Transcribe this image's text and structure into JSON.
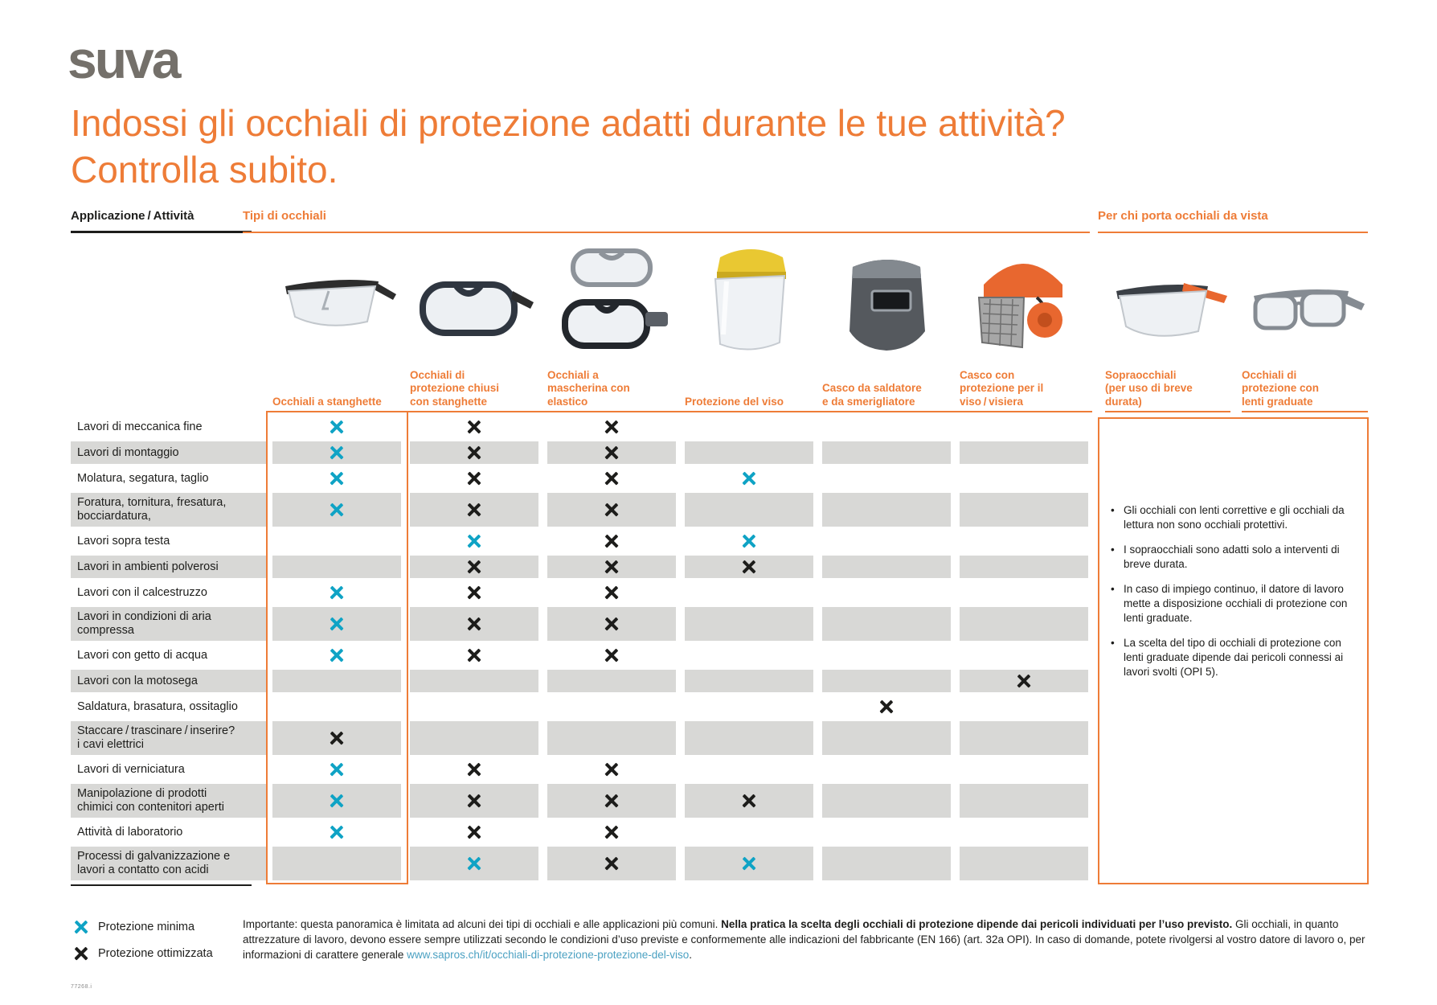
{
  "logo": "suva",
  "title_line1": "Indossi gli occhiali di protezione adatti durante le tue attività?",
  "title_line2": "Controlla subito.",
  "section_headers": {
    "left": "Applicazione / Attività",
    "types": "Tipi di occhiali",
    "vista": "Per chi porta occhiali da vista"
  },
  "table": {
    "columns": [
      {
        "label": "Occhiali a stanghette",
        "icon": "spectacles-icon"
      },
      {
        "label": "Occhiali di\nprotezione chiusi\ncon stanghette",
        "icon": "closed-goggles-icon"
      },
      {
        "label": "Occhiali a\nmascherina con\nelastico",
        "icon": "strap-goggles-icon"
      },
      {
        "label": "Protezione del viso",
        "icon": "face-shield-icon"
      },
      {
        "label": "Casco da saldatore\ne da smerigliatore",
        "icon": "welding-helmet-icon"
      },
      {
        "label": "Casco con\nprotezione per il\nviso / visiera",
        "icon": "forestry-helmet-icon"
      },
      {
        "label": "Sopraocchiali\n(per uso di breve\ndurata)",
        "icon": "over-glasses-icon"
      },
      {
        "label": "Occhiali di\nprotezione con\nlenti graduate",
        "icon": "prescription-glasses-icon"
      }
    ],
    "rows": [
      {
        "label": "Lavori di meccanica fine",
        "marks": [
          "min",
          "opt",
          "opt",
          "",
          "",
          ""
        ]
      },
      {
        "label": "Lavori di montaggio",
        "marks": [
          "min",
          "opt",
          "opt",
          "",
          "",
          ""
        ]
      },
      {
        "label": "Molatura, segatura, taglio",
        "marks": [
          "min",
          "opt",
          "opt",
          "min",
          "",
          ""
        ]
      },
      {
        "label": "Foratura, tornitura, fresatura,\nbocciardatura,",
        "marks": [
          "min",
          "opt",
          "opt",
          "",
          "",
          ""
        ]
      },
      {
        "label": "Lavori sopra testa",
        "marks": [
          "",
          "min",
          "opt",
          "min",
          "",
          ""
        ]
      },
      {
        "label": "Lavori in ambienti polverosi",
        "marks": [
          "",
          "opt",
          "opt",
          "opt",
          "",
          ""
        ]
      },
      {
        "label": "Lavori con il calcestruzzo",
        "marks": [
          "min",
          "opt",
          "opt",
          "",
          "",
          ""
        ]
      },
      {
        "label": "Lavori in condizioni di aria\ncompressa",
        "marks": [
          "min",
          "opt",
          "opt",
          "",
          "",
          ""
        ]
      },
      {
        "label": "Lavori con getto di acqua",
        "marks": [
          "min",
          "opt",
          "opt",
          "",
          "",
          ""
        ]
      },
      {
        "label": "Lavori con la motosega",
        "marks": [
          "",
          "",
          "",
          "",
          "",
          "opt"
        ]
      },
      {
        "label": "Saldatura, brasatura, ossitaglio",
        "marks": [
          "",
          "",
          "",
          "",
          "opt",
          ""
        ]
      },
      {
        "label": "Staccare / trascinare / inserire?\ni cavi elettrici",
        "marks": [
          "opt",
          "",
          "",
          "",
          "",
          ""
        ]
      },
      {
        "label": "Lavori di verniciatura",
        "marks": [
          "min",
          "opt",
          "opt",
          "",
          "",
          ""
        ]
      },
      {
        "label": "Manipolazione di prodotti\nchimici con contenitori aperti",
        "marks": [
          "min",
          "opt",
          "opt",
          "opt",
          "",
          ""
        ]
      },
      {
        "label": "Attività di laboratorio",
        "marks": [
          "min",
          "opt",
          "opt",
          "",
          "",
          ""
        ]
      },
      {
        "label": "Processi di galvanizzazione e\nlavori a contatto con acidi",
        "marks": [
          "",
          "min",
          "opt",
          "min",
          "",
          ""
        ]
      }
    ]
  },
  "notes": [
    "Gli occhiali con lenti correttive e gli occhiali da lettura non sono occhiali protettivi.",
    "I sopraocchiali sono adatti solo a interventi di breve durata.",
    "In caso di impiego continuo, il datore di lavoro mette a disposizione occhiali di protezione con lenti graduate.",
    "La scelta del tipo di occhiali di protezione con lenti graduate dipende dai pericoli connessi ai lavori svolti (OPI 5)."
  ],
  "legend": {
    "minimal": "Protezione minima",
    "optimal": "Protezione ottimizzata"
  },
  "footer": {
    "seg1": "Importante: questa panoramica è limitata ad alcuni dei tipi di occhiali e alle applicazioni più comuni. ",
    "seg_bold": "Nella pratica la scelta degli occhiali di protezione dipende dai pericoli individuati per l’uso previsto.",
    "seg2": " Gli occhiali, in quanto attrezzature di lavoro, devono essere sempre utilizzati secondo le condizioni d’uso previste e conformemente alle indicazioni del fabbricante (EN 166) (art. 32a OPI). In caso di domande, potete rivolgersi al vostro datore di lavoro o, per informazioni di carattere generale ",
    "link": "www.sapros.ch/it/occhiali-di-protezione-protezione-del-viso",
    "seg3": "."
  },
  "doc_number": "77268.i",
  "colors": {
    "accent_orange": "#ee7c37",
    "mark_minimal": "#0fa3c5",
    "mark_optimal": "#1d1d1b",
    "row_shade": "#d8d8d6",
    "logo_gray": "#74706a",
    "link_teal": "#4ba1c2"
  }
}
